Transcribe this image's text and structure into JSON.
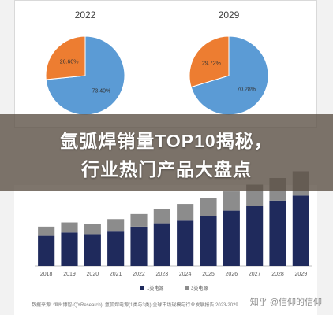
{
  "headline": {
    "line1": "氩弧焊销量TOP10揭秘，",
    "line2": "行业热门产品大盘点"
  },
  "chart_data": [
    {
      "type": "pie",
      "title": "2022",
      "slices": [
        {
          "label": "73.40%",
          "value": 73.4,
          "color": "#5b9bd5"
        },
        {
          "label": "26.60%",
          "value": 26.6,
          "color": "#ed7d31"
        }
      ]
    },
    {
      "type": "pie",
      "title": "2029",
      "slices": [
        {
          "label": "70.28%",
          "value": 70.28,
          "color": "#5b9bd5"
        },
        {
          "label": "29.72%",
          "value": 29.72,
          "color": "#ed7d31"
        }
      ]
    },
    {
      "type": "bar",
      "stacked": true,
      "categories": [
        "2018",
        "2019",
        "2020",
        "2021",
        "2022",
        "2023",
        "2024",
        "2025",
        "2026",
        "2027",
        "2028",
        "2029"
      ],
      "series": [
        {
          "name": "1类电源",
          "color": "#1f2a5c",
          "values": [
            36,
            40,
            38,
            42,
            47,
            51,
            55,
            60,
            66,
            72,
            78,
            84
          ]
        },
        {
          "name": "3类电源",
          "color": "#8c8c8c",
          "values": [
            11,
            12,
            12,
            14,
            15,
            17,
            19,
            21,
            23,
            25,
            27,
            29
          ]
        }
      ],
      "ylim": [
        0,
        120
      ],
      "grid": false,
      "legend": "bottom"
    }
  ],
  "caption": "数据来源: 恒州博智(QYResearch), 氩弧焊电源(1类与3类) 全球市场规模与行业发展报告 2023-2029",
  "watermark": "知乎 @信仰的信仰"
}
